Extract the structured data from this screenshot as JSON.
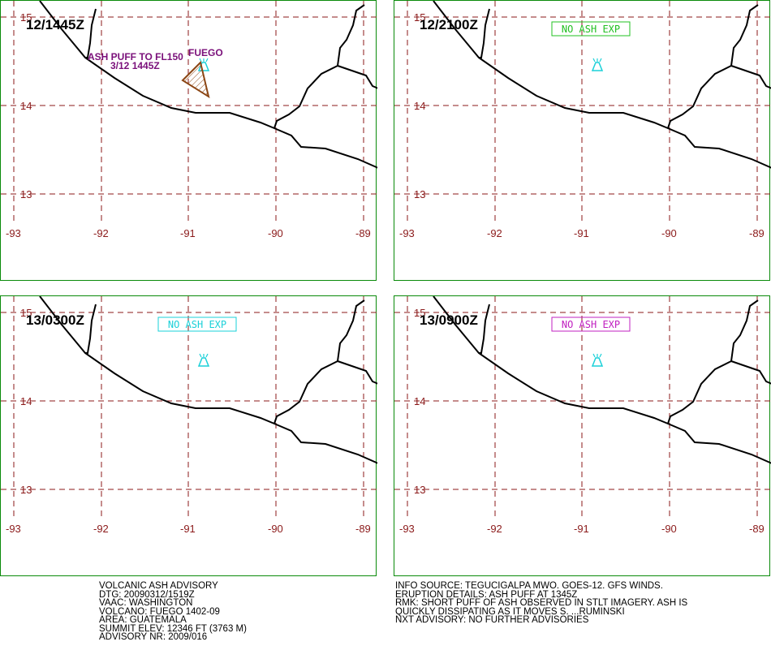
{
  "map": {
    "lon_ticks": [
      "-93",
      "-92",
      "-91",
      "-90",
      "-89"
    ],
    "lat_ticks": [
      "15",
      "14",
      "13"
    ]
  },
  "panels": [
    {
      "stamp": "12/1445Z",
      "label_color": "#7a107a",
      "ash_label_1": "ASH PUFF TO FL150",
      "ash_label_2": "3/12 1445Z",
      "volcano_name": "FUEGO",
      "no_ash": ""
    },
    {
      "stamp": "12/2100Z",
      "no_ash": "NO ASH EXP",
      "no_ash_color": "#22c022"
    },
    {
      "stamp": "13/0300Z",
      "no_ash": "NO ASH EXP",
      "no_ash_color": "#1ad0d8"
    },
    {
      "stamp": "13/0900Z",
      "no_ash": "NO ASH EXP",
      "no_ash_color": "#c020c0"
    }
  ],
  "volcano_marker_color": "#1ad0d8",
  "ash_polygon_color": "#8b4513",
  "advisory_left": [
    "VOLCANIC ASH ADVISORY",
    "DTG: 20090312/1519Z",
    "VAAC: WASHINGTON",
    "VOLCANO: FUEGO 1402-09",
    "AREA: GUATEMALA",
    "SUMMIT ELEV: 12346 FT (3763 M)",
    "ADVISORY NR: 2009/016"
  ],
  "advisory_right": [
    "INFO SOURCE: TEGUCIGALPA MWO. GOES-12. GFS WINDS.",
    "ERUPTION DETAILS: ASH PUFF AT 1345Z",
    "RMK: SHORT PUFF OF ASH OBSERVED IN STLT IMAGERY. ASH IS",
    "QUICKLY DISSIPATING AS IT MOVES S. ...RUMINSKI",
    "NXT ADVISORY: NO FURTHER ADVISORIES"
  ]
}
